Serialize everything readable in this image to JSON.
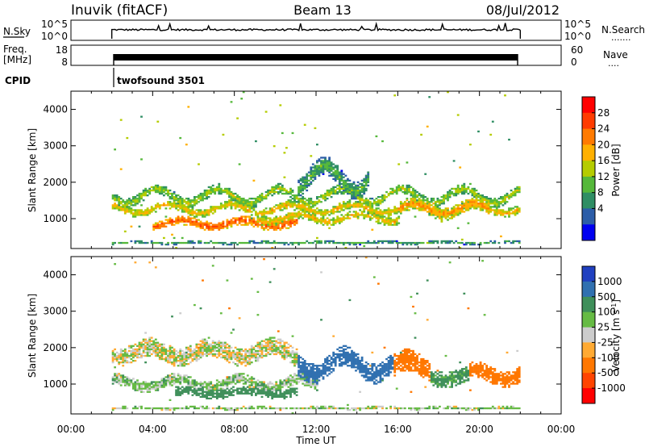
{
  "header": {
    "station": "Inuvik (fitACF)",
    "beam": "Beam 13",
    "date": "08/Jul/2012"
  },
  "strips": {
    "nsky": {
      "label": "N.Sky",
      "left_ticks": [
        "10^5",
        "10^0"
      ],
      "right_ticks": [
        "10^5",
        "10^0"
      ],
      "right_label": "N.Search",
      "right_label_dots": "......."
    },
    "freq": {
      "label_line1": "Freq.",
      "label_line2": "[MHz]",
      "left_ticks": [
        "18",
        "8"
      ],
      "right_ticks": [
        "60",
        "0"
      ],
      "right_label": "Nave",
      "right_label_dots": "...."
    },
    "cpid": {
      "label": "CPID",
      "program": "twofsound 3501"
    }
  },
  "colorbars": {
    "power": {
      "label": "Power [dB]",
      "ticks": [
        "28",
        "24",
        "20",
        "16",
        "12",
        "8",
        "4"
      ],
      "colors": [
        "#ff0000",
        "#ff3b00",
        "#ff7a00",
        "#ffb000",
        "#b5cc00",
        "#55b83a",
        "#2f8e64",
        "#2c5da8",
        "#0000f0"
      ]
    },
    "velocity": {
      "label": "Velocity [m s",
      "label_sup": "-1",
      "label_end": "]",
      "ticks": [
        "1000",
        "500",
        "100",
        "25",
        "-25",
        "-100",
        "-500",
        "-1000"
      ],
      "colors": [
        "#2040c0",
        "#3070b0",
        "#3f8f5a",
        "#66bb44",
        "#cccccc",
        "#ffaa33",
        "#ff7700",
        "#ff4400",
        "#ff0000"
      ]
    }
  },
  "chart_data": [
    {
      "type": "heatmap",
      "name": "power",
      "ylabel": "Slant Range [km]",
      "yticks": [
        1000,
        2000,
        3000,
        4000
      ],
      "ylim": [
        180,
        4500
      ],
      "xlim": [
        0,
        24
      ],
      "data_start_hour": 2,
      "data_end_hour": 22,
      "bands": [
        {
          "start": 2,
          "end": 22,
          "center": 1600,
          "amp": 200,
          "width": 140,
          "level": 14
        },
        {
          "start": 2,
          "end": 22,
          "center": 1250,
          "amp": 120,
          "width": 120,
          "level": 18
        },
        {
          "start": 4,
          "end": 11,
          "center": 850,
          "amp": 90,
          "width": 130,
          "level": 25
        },
        {
          "start": 9,
          "end": 16,
          "center": 1000,
          "amp": 110,
          "width": 120,
          "level": 18
        },
        {
          "start": 16,
          "end": 20.5,
          "center": 1250,
          "amp": 150,
          "width": 170,
          "level": 21
        },
        {
          "start": 2,
          "end": 22,
          "center": 320,
          "amp": 20,
          "width": 40,
          "level": 10
        },
        {
          "start": 11,
          "end": 14.5,
          "center": 2100,
          "amp": 350,
          "width": 260,
          "level": 10
        }
      ]
    },
    {
      "type": "heatmap",
      "name": "velocity",
      "ylabel": "Slant Range [km]",
      "xlabel": "Time UT",
      "xticks": [
        "00:00",
        "04:00",
        "08:00",
        "12:00",
        "16:00",
        "20:00",
        "00:00"
      ],
      "yticks": [
        1000,
        2000,
        3000,
        4000
      ],
      "ylim": [
        180,
        4500
      ],
      "xlim": [
        0,
        24
      ],
      "data_start_hour": 2,
      "data_end_hour": 22,
      "bands": [
        {
          "start": 2,
          "end": 11,
          "center": 1850,
          "amp": 150,
          "width": 260,
          "level": 0
        },
        {
          "start": 2,
          "end": 12,
          "center": 1000,
          "amp": 120,
          "width": 160,
          "level": 50
        },
        {
          "start": 5,
          "end": 11,
          "center": 750,
          "amp": 60,
          "width": 130,
          "level": 300
        },
        {
          "start": 11,
          "end": 15.7,
          "center": 1500,
          "amp": 250,
          "width": 280,
          "level": 800
        },
        {
          "start": 15.7,
          "end": 17.5,
          "center": 1450,
          "amp": 200,
          "width": 300,
          "level": -300
        },
        {
          "start": 17.5,
          "end": 19.5,
          "center": 1200,
          "amp": 120,
          "width": 220,
          "level": 150
        },
        {
          "start": 19.5,
          "end": 22,
          "center": 1250,
          "amp": 150,
          "width": 220,
          "level": -300
        },
        {
          "start": 2,
          "end": 22,
          "center": 320,
          "amp": 15,
          "width": 40,
          "level": 30
        }
      ]
    }
  ]
}
